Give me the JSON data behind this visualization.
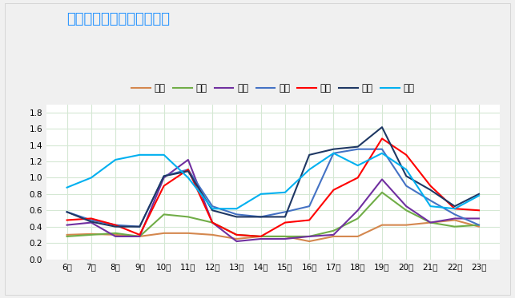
{
  "title": "春节期间高速预测指数趋势",
  "x_labels": [
    "6时",
    "7时",
    "8时",
    "9时",
    "10时",
    "11时",
    "12时",
    "13时",
    "14时",
    "15时",
    "16时",
    "17时",
    "18时",
    "19时",
    "20时",
    "21时",
    "22时",
    "23时"
  ],
  "series": [
    {
      "name": "三十",
      "color": "#d4874e",
      "values": [
        0.3,
        0.31,
        0.3,
        0.28,
        0.32,
        0.32,
        0.3,
        0.25,
        0.28,
        0.28,
        0.22,
        0.28,
        0.28,
        0.42,
        0.42,
        0.45,
        0.48,
        0.4
      ]
    },
    {
      "name": "初一",
      "color": "#70ad47",
      "values": [
        0.28,
        0.3,
        0.32,
        0.28,
        0.55,
        0.52,
        0.45,
        0.3,
        0.28,
        0.28,
        0.28,
        0.35,
        0.5,
        0.82,
        0.6,
        0.45,
        0.4,
        0.42
      ]
    },
    {
      "name": "初二",
      "color": "#7030a0",
      "values": [
        0.42,
        0.45,
        0.28,
        0.28,
        1.0,
        1.22,
        0.45,
        0.22,
        0.25,
        0.25,
        0.28,
        0.3,
        0.6,
        0.98,
        0.65,
        0.45,
        0.5,
        0.5
      ]
    },
    {
      "name": "初三",
      "color": "#4472c4",
      "values": [
        0.58,
        0.48,
        0.42,
        0.4,
        1.02,
        1.1,
        0.65,
        0.55,
        0.52,
        0.58,
        0.65,
        1.3,
        1.35,
        1.35,
        0.9,
        0.72,
        0.55,
        0.42
      ]
    },
    {
      "name": "初四",
      "color": "#ff0000",
      "values": [
        0.48,
        0.5,
        0.42,
        0.3,
        0.9,
        1.1,
        0.45,
        0.3,
        0.28,
        0.45,
        0.48,
        0.85,
        1.0,
        1.48,
        1.28,
        0.9,
        0.62,
        0.6
      ]
    },
    {
      "name": "初五",
      "color": "#1f3864",
      "values": [
        0.58,
        0.46,
        0.4,
        0.4,
        1.02,
        1.08,
        0.6,
        0.52,
        0.52,
        0.52,
        1.28,
        1.35,
        1.38,
        1.62,
        1.02,
        0.85,
        0.65,
        0.8
      ]
    },
    {
      "name": "初六",
      "color": "#00b0f0",
      "values": [
        0.88,
        1.0,
        1.22,
        1.28,
        1.28,
        1.0,
        0.62,
        0.62,
        0.8,
        0.82,
        1.1,
        1.3,
        1.15,
        1.3,
        1.1,
        0.65,
        0.62,
        0.78
      ]
    }
  ],
  "ylim": [
    0,
    1.9
  ],
  "yticks": [
    0,
    0.2,
    0.4,
    0.6,
    0.8,
    1.0,
    1.2,
    1.4,
    1.6,
    1.8
  ],
  "bg_color": "#f0f0f0",
  "plot_bg_color": "#ffffff",
  "title_color": "#1e90ff",
  "title_box_color": "#f5a623",
  "grid_color": "#d5e8d4",
  "legend_fontsize": 8.5,
  "title_fontsize": 13,
  "axis_fontsize": 7.5
}
